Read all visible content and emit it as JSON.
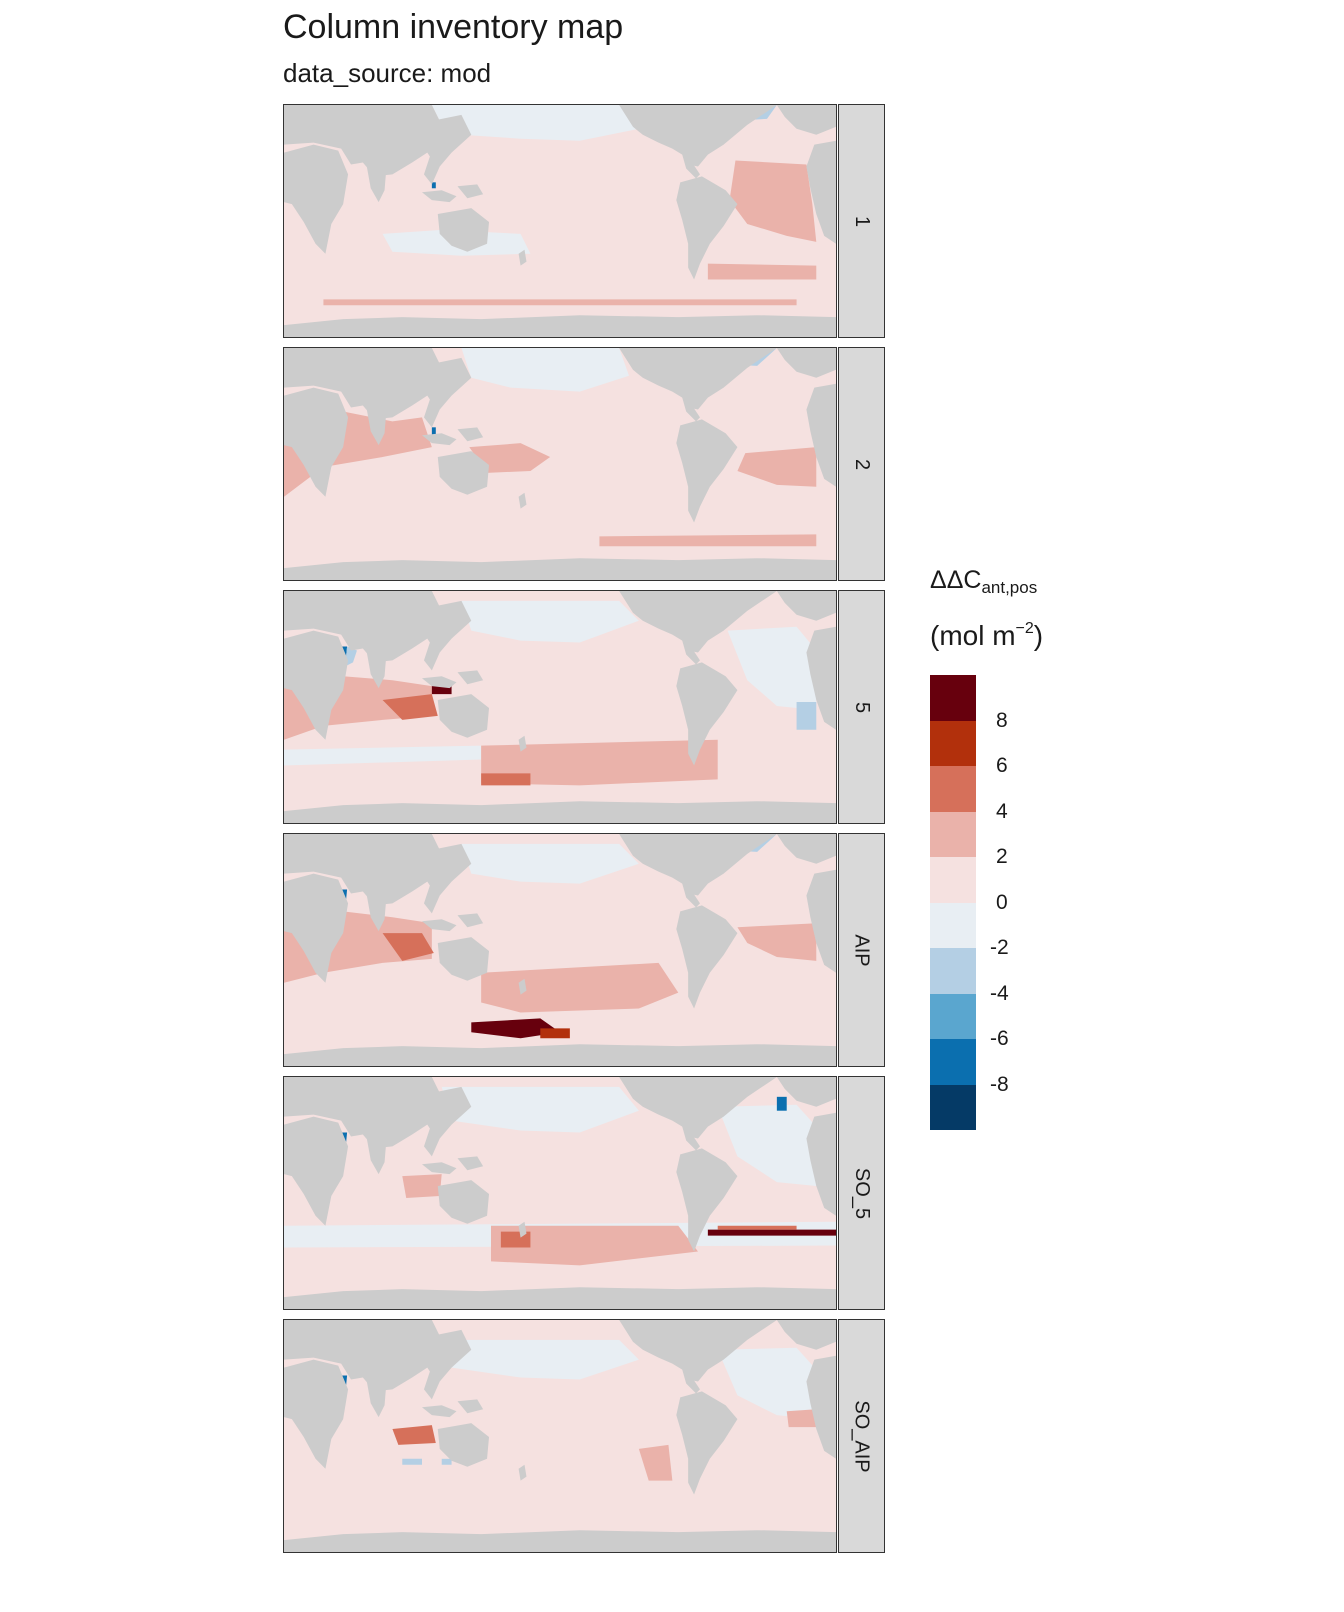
{
  "title": "Column inventory map",
  "subtitle": "data_source: mod",
  "legend": {
    "title_main": "ΔΔC",
    "title_sub": "ant,pos",
    "unit_main": "(mol m",
    "unit_sup": "−2",
    "unit_close": ")",
    "colors": [
      "#67000d",
      "#b2300c",
      "#d6705a",
      "#eab2aa",
      "#f5e1e0",
      "#e8eef3",
      "#b4cfe4",
      "#5aa6cf",
      "#0b6faf",
      "#053a66"
    ],
    "breaks": [
      10,
      8,
      6,
      4,
      2,
      0,
      -2,
      -4,
      -6,
      -8,
      -10
    ],
    "labels": [
      "8",
      "6",
      "4",
      "2",
      "0",
      "-2",
      "-4",
      "-6",
      "-8"
    ]
  },
  "colors": {
    "land": "#cccccc",
    "ocean_bg": "#f5e1e0",
    "strip_bg": "#d9d9d9"
  },
  "panels": [
    {
      "label": "1"
    },
    {
      "label": "2"
    },
    {
      "label": "5"
    },
    {
      "label": "AIP"
    },
    {
      "label": "SO_5"
    },
    {
      "label": "SO_AIP"
    }
  ]
}
